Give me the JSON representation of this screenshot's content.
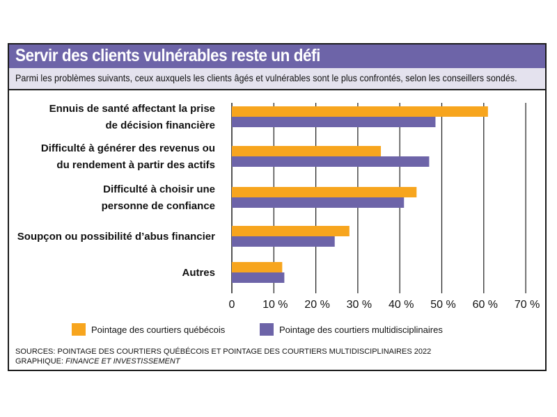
{
  "header": {
    "title": "Servir des clients vulnérables reste un défi",
    "subtitle": "Parmi les problèmes suivants, ceux auxquels les clients âgés et vulnérables sont le plus confrontés, selon les conseillers sondés."
  },
  "colors": {
    "title_bar": "#6d64a8",
    "subtitle_bar": "#e4e2ee",
    "series_quebec": "#f7a51e",
    "series_multi": "#6d64a8"
  },
  "chart_data": {
    "type": "bar",
    "orientation": "horizontal",
    "categories": [
      [
        "Ennuis de santé affectant la prise",
        "de décision financière"
      ],
      [
        "Difficulté à générer des revenus ou",
        "du rendement à partir des actifs"
      ],
      [
        "Difficulté à choisir une",
        "personne de confiance"
      ],
      [
        "Soupçon ou possibilité d’abus financier"
      ],
      [
        "Autres"
      ]
    ],
    "series": [
      {
        "name": "Pointage des courtiers québécois",
        "values": [
          61,
          35.5,
          44,
          28,
          12
        ]
      },
      {
        "name": "Pointage des courtiers multidisciplinaires",
        "values": [
          48.5,
          47,
          41,
          24.5,
          12.5
        ]
      }
    ],
    "xlim": [
      0,
      70
    ],
    "ticks": [
      0,
      10,
      20,
      30,
      40,
      50,
      60,
      70
    ],
    "tick_labels": [
      "0",
      "10 %",
      "20 %",
      "30 %",
      "40 %",
      "50 %",
      "60 %",
      "70 %"
    ],
    "grid": true,
    "legend": "bottom"
  },
  "footer": {
    "sources": "SOURCES: POINTAGE DES COURTIERS QUÉBÉCOIS ET POINTAGE DES COURTIERS MULTIDISCIPLINAIRES 2022",
    "credit_prefix": "GRAPHIQUE: ",
    "credit_name": "FINANCE ET INVESTISSEMENT"
  }
}
